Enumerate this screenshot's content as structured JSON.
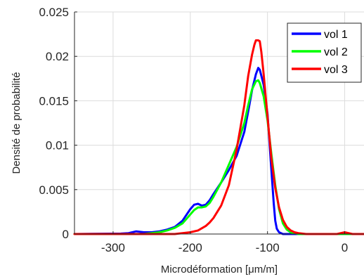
{
  "chart_data": {
    "type": "line",
    "title": "",
    "xlabel": "Microdéformation [μm/m]",
    "ylabel": "Densité de probabilité",
    "xlim": [
      -350,
      25
    ],
    "ylim": [
      0,
      0.025
    ],
    "xticks": [
      -300,
      -200,
      -100,
      0
    ],
    "xtick_labels": [
      "-300",
      "-200",
      "-100",
      "0"
    ],
    "yticks": [
      0,
      0.005,
      0.01,
      0.015,
      0.02,
      0.025
    ],
    "ytick_labels": [
      "0",
      "0.005",
      "0.01",
      "0.015",
      "0.02",
      "0.025"
    ],
    "grid": true,
    "legend_position": "top-right",
    "series": [
      {
        "name": "vol 1",
        "color": "#0000ff",
        "x": [
          -350,
          -290,
          -280,
          -270,
          -260,
          -250,
          -240,
          -230,
          -220,
          -210,
          -200,
          -195,
          -190,
          -185,
          -180,
          -175,
          -170,
          -160,
          -150,
          -140,
          -130,
          -125,
          -120,
          -115,
          -112,
          -110,
          -105,
          -100,
          -98,
          -95,
          -92,
          -90,
          -88,
          -85,
          -80,
          25
        ],
        "y": [
          0,
          5e-05,
          0.0001,
          0.0003,
          0.0002,
          0.0002,
          0.0003,
          0.0005,
          0.0008,
          0.0015,
          0.0028,
          0.0033,
          0.0034,
          0.0032,
          0.0033,
          0.0038,
          0.0045,
          0.0058,
          0.0072,
          0.0088,
          0.0115,
          0.0138,
          0.0162,
          0.018,
          0.0187,
          0.0185,
          0.0168,
          0.0135,
          0.011,
          0.0072,
          0.0035,
          0.0015,
          0.0006,
          0.0002,
          0,
          0
        ]
      },
      {
        "name": "vol 2",
        "color": "#00ff00",
        "x": [
          -350,
          -260,
          -250,
          -240,
          -230,
          -220,
          -210,
          -200,
          -195,
          -190,
          -185,
          -180,
          -175,
          -170,
          -160,
          -150,
          -140,
          -130,
          -125,
          -120,
          -115,
          -112,
          -110,
          -105,
          -100,
          -95,
          -90,
          -85,
          -80,
          -75,
          -70,
          -60,
          25
        ],
        "y": [
          0,
          0,
          0.0001,
          0.0002,
          0.0004,
          0.0007,
          0.0012,
          0.0022,
          0.0027,
          0.003,
          0.003,
          0.0031,
          0.0035,
          0.0042,
          0.0058,
          0.0078,
          0.0098,
          0.0125,
          0.0145,
          0.0163,
          0.0172,
          0.0173,
          0.017,
          0.0155,
          0.0128,
          0.009,
          0.0055,
          0.0028,
          0.0012,
          0.0005,
          0.0002,
          0,
          0
        ]
      },
      {
        "name": "vol 3",
        "color": "#ff0000",
        "x": [
          -350,
          -220,
          -210,
          -200,
          -190,
          -180,
          -175,
          -170,
          -160,
          -150,
          -140,
          -130,
          -125,
          -120,
          -117,
          -115,
          -112,
          -110,
          -108,
          -105,
          -100,
          -95,
          -90,
          -85,
          -80,
          -75,
          -70,
          -65,
          -60,
          -50,
          -40,
          -10,
          0,
          5,
          10,
          25
        ],
        "y": [
          0,
          0,
          0.0001,
          0.0002,
          0.0004,
          0.0009,
          0.0013,
          0.0018,
          0.0032,
          0.0055,
          0.0095,
          0.0145,
          0.0178,
          0.0202,
          0.0213,
          0.0218,
          0.0218,
          0.0217,
          0.0205,
          0.018,
          0.0132,
          0.0085,
          0.0052,
          0.003,
          0.0016,
          0.0008,
          0.0004,
          0.0002,
          0.0001,
          0,
          0,
          0,
          0.0002,
          0.0001,
          0,
          0
        ]
      }
    ]
  }
}
